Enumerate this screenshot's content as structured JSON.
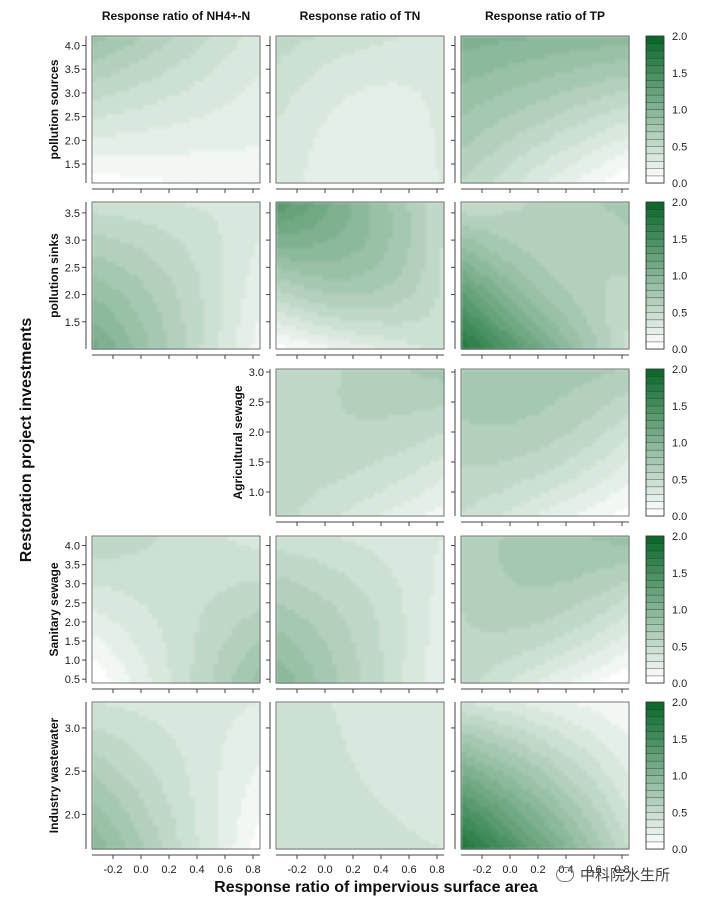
{
  "chart_data": {
    "type": "heatmap",
    "title": "",
    "column_titles": [
      "Response ratio of NH4+-N",
      "Response ratio of TN",
      "Response ratio of TP"
    ],
    "ylabel": "Restoration project investments",
    "xlabel": "Response ratio of impervious surface area",
    "xlim": [
      -0.35,
      0.85
    ],
    "xticks": [
      -0.2,
      0.0,
      0.2,
      0.4,
      0.6,
      0.8
    ],
    "colorbar": {
      "range": [
        0,
        2
      ],
      "ticks": [
        0.0,
        0.5,
        1.0,
        1.5,
        2.0
      ],
      "levels": 20,
      "color_low": "#ffffff",
      "color_high": "#0c6b2c"
    },
    "rows": [
      {
        "name": "pollution sources",
        "ylim": [
          1.1,
          4.2
        ],
        "yticks": [
          1.5,
          2.0,
          2.5,
          3.0,
          3.5,
          4.0
        ],
        "panels": [
          {
            "visible": true,
            "corners": {
              "top_left": 0.85,
              "top_right": 0.35,
              "bottom_left": 0.05,
              "bottom_right": 0.15
            },
            "cross": 0.0
          },
          {
            "visible": true,
            "corners": {
              "top_left": 0.55,
              "top_right": 0.35,
              "bottom_left": 0.3,
              "bottom_right": 0.3
            },
            "cross": -0.2
          },
          {
            "visible": true,
            "corners": {
              "top_left": 1.05,
              "top_right": 0.95,
              "bottom_left": 0.6,
              "bottom_right": 0.0
            },
            "cross": 0.0
          }
        ]
      },
      {
        "name": "pollution sinks",
        "ylim": [
          1.0,
          3.7
        ],
        "yticks": [
          1.5,
          2.0,
          2.5,
          3.0,
          3.5
        ],
        "panels": [
          {
            "visible": true,
            "corners": {
              "top_left": 0.45,
              "top_right": 0.35,
              "bottom_left": 1.15,
              "bottom_right": 0.15
            },
            "cross": 0.1
          },
          {
            "visible": true,
            "corners": {
              "top_left": 1.4,
              "top_right": 0.5,
              "bottom_left": 0.05,
              "bottom_right": 0.45
            },
            "cross": 0.4
          },
          {
            "visible": true,
            "corners": {
              "top_left": 0.5,
              "top_right": 0.75,
              "bottom_left": 1.8,
              "bottom_right": 0.45
            },
            "cross": -0.3
          }
        ]
      },
      {
        "name": "Agricultural sewage",
        "ylim": [
          0.6,
          3.05
        ],
        "yticks": [
          1.0,
          1.5,
          2.0,
          2.5,
          3.0
        ],
        "panels": [
          {
            "visible": false
          },
          {
            "visible": true,
            "corners": {
              "top_left": 0.5,
              "top_right": 0.75,
              "bottom_left": 0.55,
              "bottom_right": 0.15
            },
            "cross": 0.15
          },
          {
            "visible": true,
            "corners": {
              "top_left": 0.8,
              "top_right": 0.7,
              "bottom_left": 0.5,
              "bottom_right": 0.05
            },
            "cross": 0.2
          }
        ]
      },
      {
        "name": "Sanitary sewage",
        "ylim": [
          0.4,
          4.25
        ],
        "yticks": [
          0.5,
          1.0,
          1.5,
          2.0,
          2.5,
          3.0,
          3.5,
          4.0
        ],
        "panels": [
          {
            "visible": true,
            "corners": {
              "top_left": 0.6,
              "top_right": 0.35,
              "bottom_left": 0.0,
              "bottom_right": 0.85
            },
            "cross": 0.0
          },
          {
            "visible": true,
            "corners": {
              "top_left": 0.45,
              "top_right": 0.3,
              "bottom_left": 1.0,
              "bottom_right": 0.2
            },
            "cross": 0.1
          },
          {
            "visible": true,
            "corners": {
              "top_left": 0.65,
              "top_right": 0.85,
              "bottom_left": 0.55,
              "bottom_right": 0.0
            },
            "cross": 0.25
          }
        ]
      },
      {
        "name": "Industry wastewater",
        "ylim": [
          1.6,
          3.3
        ],
        "yticks": [
          2.0,
          2.5,
          3.0
        ],
        "panels": [
          {
            "visible": true,
            "corners": {
              "top_left": 0.4,
              "top_right": 0.3,
              "bottom_left": 1.0,
              "bottom_right": 0.05
            },
            "cross": 0.0
          },
          {
            "visible": true,
            "corners": {
              "top_left": 0.45,
              "top_right": 0.3,
              "bottom_left": 0.45,
              "bottom_right": 0.4
            },
            "cross": 0.0
          },
          {
            "visible": true,
            "corners": {
              "top_left": 0.4,
              "top_right": 0.1,
              "bottom_left": 1.85,
              "bottom_right": 0.5
            },
            "cross": 0.0
          }
        ]
      }
    ]
  },
  "watermark": "中科院水生所"
}
